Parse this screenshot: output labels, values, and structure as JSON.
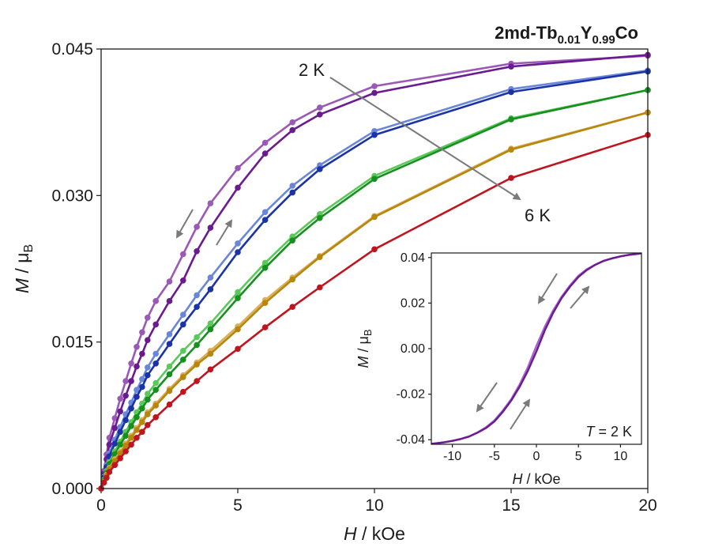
{
  "chart_data": {
    "type": "line",
    "title": {
      "prefix": "2md-Tb",
      "sub1": "0.01",
      "mid": "Y",
      "sub2": "0.99",
      "suffix": "Co"
    },
    "main": {
      "xlabel": {
        "var": "H",
        "unit": " / kOe"
      },
      "ylabel": {
        "var": "M",
        "unit": " / μ",
        "unit_sub": "B"
      },
      "xlim": [
        0,
        20
      ],
      "ylim": [
        0,
        0.045
      ],
      "xticks": [
        0,
        5,
        10,
        15,
        20
      ],
      "xtick_labels": [
        "0",
        "5",
        "10",
        "15",
        "20"
      ],
      "yticks": [
        0,
        0.015,
        0.03,
        0.045
      ],
      "ytick_labels": [
        "0.000",
        "0.015",
        "0.030",
        "0.045"
      ],
      "x": [
        0,
        0.1,
        0.2,
        0.3,
        0.5,
        0.7,
        0.9,
        1.1,
        1.3,
        1.5,
        1.7,
        2.0,
        2.5,
        3.0,
        3.5,
        4.0,
        5.0,
        6.0,
        7.0,
        8.0,
        10.0,
        15.0,
        20.0
      ],
      "series": [
        {
          "color": "#9b59b6",
          "values": [
            0,
            0.0018,
            0.0035,
            0.0052,
            0.0072,
            0.0092,
            0.011,
            0.0128,
            0.0145,
            0.016,
            0.0175,
            0.0192,
            0.0212,
            0.024,
            0.0268,
            0.0292,
            0.0328,
            0.0354,
            0.0375,
            0.039,
            0.0412,
            0.0435,
            0.0443
          ]
        },
        {
          "color": "#6a1b8f",
          "values": [
            0,
            0.0015,
            0.003,
            0.0045,
            0.0062,
            0.0079,
            0.0095,
            0.011,
            0.0125,
            0.0138,
            0.0152,
            0.0168,
            0.0192,
            0.0213,
            0.0243,
            0.0267,
            0.0308,
            0.0343,
            0.0367,
            0.0383,
            0.0405,
            0.0432,
            0.0444
          ]
        },
        {
          "color": "#6a86d8",
          "values": [
            0,
            0.0012,
            0.0024,
            0.0036,
            0.005,
            0.0063,
            0.0076,
            0.0088,
            0.0101,
            0.0112,
            0.0124,
            0.0138,
            0.0158,
            0.0178,
            0.0198,
            0.0216,
            0.0251,
            0.0283,
            0.031,
            0.0331,
            0.0366,
            0.0409,
            0.0428
          ]
        },
        {
          "color": "#1a33a8",
          "values": [
            0,
            0.0011,
            0.0022,
            0.0033,
            0.0046,
            0.0058,
            0.007,
            0.0082,
            0.0094,
            0.0104,
            0.0116,
            0.0128,
            0.0148,
            0.0168,
            0.0186,
            0.0204,
            0.0242,
            0.0275,
            0.0303,
            0.0327,
            0.0362,
            0.0406,
            0.0427
          ]
        },
        {
          "color": "#5ac85a",
          "values": [
            0,
            0.0009,
            0.0018,
            0.0027,
            0.0038,
            0.0048,
            0.0058,
            0.0068,
            0.0078,
            0.0087,
            0.0097,
            0.0108,
            0.0125,
            0.0141,
            0.0155,
            0.0169,
            0.0201,
            0.0231,
            0.0258,
            0.0281,
            0.032,
            0.0379,
            0.0408
          ]
        },
        {
          "color": "#16901e",
          "values": [
            0,
            0.0008,
            0.0016,
            0.0025,
            0.0035,
            0.0045,
            0.0054,
            0.0064,
            0.0073,
            0.0082,
            0.0091,
            0.0101,
            0.0117,
            0.0132,
            0.0147,
            0.0163,
            0.0195,
            0.0226,
            0.0254,
            0.0277,
            0.0317,
            0.0378,
            0.0408
          ]
        },
        {
          "color": "#d9b05c",
          "values": [
            0,
            0.0007,
            0.0014,
            0.0021,
            0.003,
            0.0038,
            0.0046,
            0.0054,
            0.0062,
            0.007,
            0.0078,
            0.0087,
            0.0102,
            0.0116,
            0.0129,
            0.0141,
            0.0166,
            0.0193,
            0.0216,
            0.0238,
            0.0279,
            0.0348,
            0.0385
          ]
        },
        {
          "color": "#b8860b",
          "values": [
            0,
            0.0007,
            0.0013,
            0.002,
            0.0028,
            0.0036,
            0.0044,
            0.0052,
            0.006,
            0.0068,
            0.0076,
            0.0085,
            0.01,
            0.0114,
            0.0127,
            0.0138,
            0.0163,
            0.019,
            0.0214,
            0.0237,
            0.0278,
            0.0347,
            0.0385
          ]
        },
        {
          "color": "#c0141e",
          "values": [
            0,
            0.0006,
            0.0011,
            0.0017,
            0.0024,
            0.0031,
            0.0038,
            0.0045,
            0.0052,
            0.0058,
            0.0065,
            0.0073,
            0.0086,
            0.0099,
            0.011,
            0.0122,
            0.0143,
            0.0165,
            0.0186,
            0.0206,
            0.0245,
            0.0318,
            0.0362
          ]
        }
      ],
      "annotations": {
        "start_label": "2 K",
        "end_label": "6 K"
      }
    },
    "inset": {
      "xlabel": {
        "var": "H",
        "unit": " / kOe"
      },
      "ylabel": {
        "var": "M",
        "unit": " / μ",
        "unit_sub": "B"
      },
      "xlim": [
        -12.5,
        12.5
      ],
      "ylim": [
        -0.042,
        0.042
      ],
      "xticks": [
        -10,
        -5,
        0,
        5,
        10
      ],
      "xtick_labels": [
        "-10",
        "-5",
        "0",
        "5",
        "10"
      ],
      "yticks": [
        -0.04,
        -0.02,
        0,
        0.02,
        0.04
      ],
      "ytick_labels": [
        "-0.04",
        "-0.02",
        "0.00",
        "0.02",
        "0.04"
      ],
      "x": [
        -12.5,
        -11,
        -10,
        -9,
        -8,
        -7,
        -6,
        -5,
        -4,
        -3,
        -2,
        -1,
        0,
        1,
        2,
        3,
        4,
        5,
        6,
        7,
        8,
        9,
        10,
        11,
        12.5
      ],
      "series": [
        {
          "color": "#a565c8",
          "values": [
            -0.0418,
            -0.0412,
            -0.0405,
            -0.0396,
            -0.0385,
            -0.0368,
            -0.0345,
            -0.0315,
            -0.0272,
            -0.0222,
            -0.0158,
            -0.008,
            0.0012,
            0.0096,
            0.0168,
            0.0228,
            0.0278,
            0.032,
            0.0349,
            0.0369,
            0.0386,
            0.0397,
            0.0405,
            0.0411,
            0.0418
          ]
        },
        {
          "color": "#6a1b8f",
          "values": [
            -0.0418,
            -0.0411,
            -0.0405,
            -0.0397,
            -0.0386,
            -0.0369,
            -0.0349,
            -0.032,
            -0.0278,
            -0.0228,
            -0.0168,
            -0.0096,
            -0.0012,
            0.008,
            0.0158,
            0.0222,
            0.0272,
            0.0315,
            0.0345,
            0.0368,
            0.0385,
            0.0396,
            0.0405,
            0.0412,
            0.0418
          ]
        }
      ],
      "annotation": {
        "var": "T",
        "text": " = 2 K"
      }
    }
  }
}
